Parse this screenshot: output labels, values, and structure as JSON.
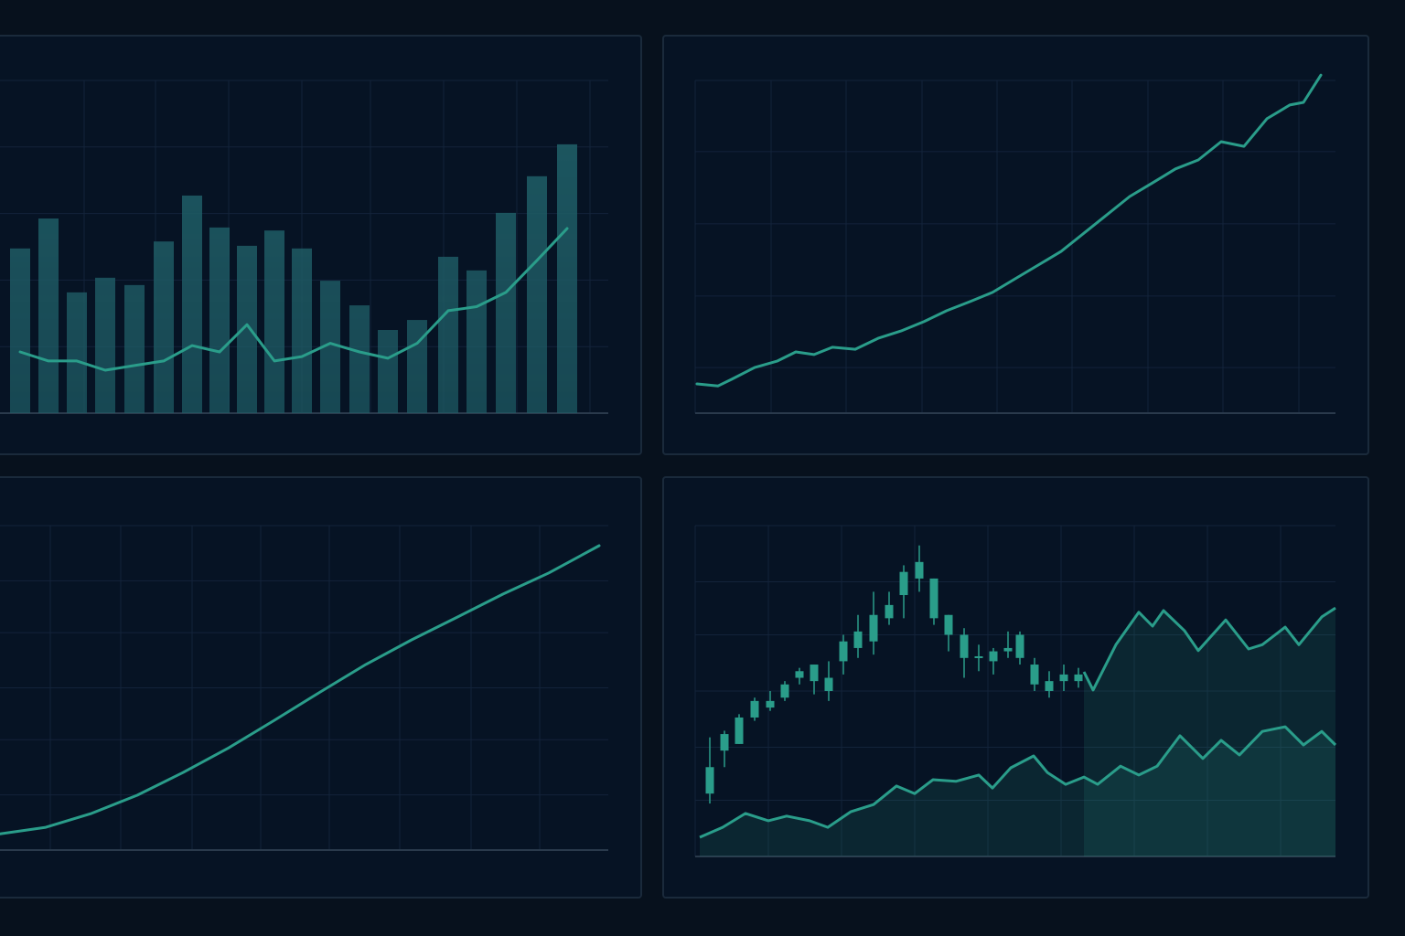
{
  "chart_data": [
    {
      "type": "bar",
      "xlim": [
        0,
        665
      ],
      "ylim": [
        0,
        100
      ],
      "xticks": [
        92,
        170,
        250,
        330,
        405,
        485,
        565,
        645
      ],
      "yticks": [
        0,
        20,
        40,
        60,
        80,
        100
      ],
      "grid": true,
      "series": [
        {
          "type": "bar",
          "color": "#1f5d66",
          "x": [
            22,
            53,
            84,
            115,
            147,
            179,
            210,
            240,
            270,
            300,
            330,
            361,
            393,
            424,
            456,
            490,
            521,
            553,
            587,
            620
          ],
          "values": [
            49.5,
            58.5,
            36.3,
            40.7,
            38.5,
            51.6,
            65.4,
            55.8,
            50.3,
            54.9,
            49.5,
            39.8,
            32.4,
            25,
            28,
            47,
            42.9,
            60.2,
            71.2,
            80.8
          ]
        },
        {
          "type": "line",
          "color": "#2a9d8a",
          "x": [
            22,
            53,
            84,
            115,
            147,
            179,
            210,
            240,
            270,
            300,
            330,
            361,
            393,
            424,
            456,
            490,
            521,
            553,
            587,
            620
          ],
          "values": [
            18.4,
            15.7,
            15.7,
            12.9,
            14.3,
            15.7,
            20.3,
            18.4,
            26.6,
            15.7,
            17,
            21,
            18.4,
            16.5,
            21,
            30.8,
            32,
            36.3,
            45.9,
            55.5
          ]
        }
      ]
    },
    {
      "type": "line",
      "xlim": [
        0,
        700
      ],
      "ylim": [
        0,
        100
      ],
      "xticks": [
        0,
        83,
        165,
        248,
        330,
        412,
        495,
        577,
        660
      ],
      "yticks": [
        0,
        13.7,
        35.2,
        56.9,
        78.6,
        100
      ],
      "grid": true,
      "series": [
        {
          "type": "line",
          "color": "#2a9d8a",
          "x": [
            2,
            25,
            40,
            65,
            90,
            110,
            130,
            150,
            175,
            200,
            225,
            250,
            275,
            300,
            325,
            350,
            375,
            400,
            425,
            450,
            475,
            500,
            525,
            550,
            575,
            600,
            625,
            650,
            665,
            684
          ],
          "values": [
            8.8,
            8.2,
            10.2,
            13.7,
            15.7,
            18.4,
            17.6,
            19.8,
            19.2,
            22.5,
            24.7,
            27.5,
            30.8,
            33.5,
            36.3,
            40.4,
            44.5,
            48.6,
            54.1,
            59.6,
            65.1,
            69.2,
            73.4,
            76.1,
            81.6,
            80.2,
            88.5,
            92.6,
            93.4,
            101.6
          ]
        }
      ]
    },
    {
      "type": "line",
      "xlim": [
        0,
        665
      ],
      "ylim": [
        0,
        100
      ],
      "xticks": [
        55,
        132,
        210,
        285,
        360,
        437,
        515,
        590
      ],
      "yticks": [
        0,
        17,
        34,
        50,
        67,
        83,
        100
      ],
      "grid": true,
      "series": [
        {
          "type": "line",
          "color": "#2a9d8a",
          "x": [
            0,
            50,
            100,
            150,
            200,
            250,
            300,
            350,
            400,
            450,
            500,
            550,
            600,
            655
          ],
          "values": [
            5,
            7,
            11.3,
            16.9,
            23.9,
            31.5,
            40,
            48.7,
            57.2,
            64.8,
            71.8,
            78.9,
            85.4,
            93.8
          ]
        }
      ]
    },
    {
      "type": "candlestick",
      "xlim": [
        0,
        700
      ],
      "ylim": [
        0,
        100
      ],
      "xticks": [
        0,
        80,
        160,
        240,
        320,
        400,
        480,
        560,
        640
      ],
      "yticks": [
        0,
        17,
        33,
        50,
        67,
        83,
        100
      ],
      "grid": true,
      "series": [
        {
          "type": "candlestick",
          "color": "#2a9d8a",
          "x": [
            16,
            32,
            48,
            65,
            82,
            98,
            114,
            130,
            146,
            162,
            178,
            195,
            212,
            228,
            245,
            261,
            277,
            294,
            310,
            326,
            342,
            355,
            371,
            387,
            403,
            419
          ],
          "open": [
            19,
            32,
            34,
            42,
            45,
            48,
            54,
            53,
            50,
            59,
            63,
            65,
            72,
            79,
            84,
            84,
            73,
            67,
            60,
            59,
            62,
            67,
            58,
            50,
            53,
            55
          ],
          "close": [
            27,
            37,
            42,
            47,
            47,
            52,
            56,
            58,
            54,
            65,
            68,
            73,
            76,
            86,
            89,
            72,
            67,
            60,
            60.5,
            62,
            63,
            60,
            52,
            53,
            55,
            53
          ],
          "high": [
            36,
            38,
            43,
            48,
            50,
            53,
            57,
            58,
            59,
            67,
            73,
            80,
            80,
            88,
            94,
            84,
            73,
            69,
            64,
            63,
            68,
            68,
            60,
            56,
            58,
            57
          ],
          "low": [
            16,
            27,
            34,
            41,
            44,
            47,
            52,
            49,
            47,
            55,
            60,
            61,
            70,
            72,
            80,
            70,
            62,
            54,
            56,
            55,
            60,
            58,
            50,
            48,
            50,
            51
          ]
        },
        {
          "type": "area",
          "color": "#2a9d8a",
          "x": [
            425,
            435,
            460,
            485,
            500,
            512,
            535,
            550,
            580,
            605,
            620,
            645,
            660,
            685,
            700
          ],
          "values": [
            55.8,
            50.3,
            64,
            73.8,
            69.6,
            74.3,
            68.2,
            62.2,
            71.5,
            62.7,
            64,
            69.3,
            64,
            72.4,
            75.1
          ]
        },
        {
          "type": "area",
          "color": "#2a9d8a",
          "x": [
            5,
            30,
            55,
            80,
            100,
            125,
            145,
            170,
            195,
            220,
            240,
            260,
            285,
            310,
            325,
            345,
            370,
            385,
            405,
            425,
            440,
            465,
            485,
            505,
            530,
            555,
            575,
            595,
            620,
            645,
            665,
            685,
            700
          ],
          "values": [
            5.8,
            8.8,
            13,
            10.8,
            12.2,
            10.8,
            8.8,
            13.5,
            15.7,
            21.3,
            19,
            23.2,
            22.7,
            24.6,
            20.7,
            26.8,
            30.4,
            25.4,
            21.8,
            24,
            21.8,
            27.3,
            24.6,
            27.3,
            36.5,
            29.6,
            35.1,
            30.7,
            37.8,
            39.2,
            33.7,
            37.8,
            33.7
          ]
        }
      ]
    }
  ]
}
